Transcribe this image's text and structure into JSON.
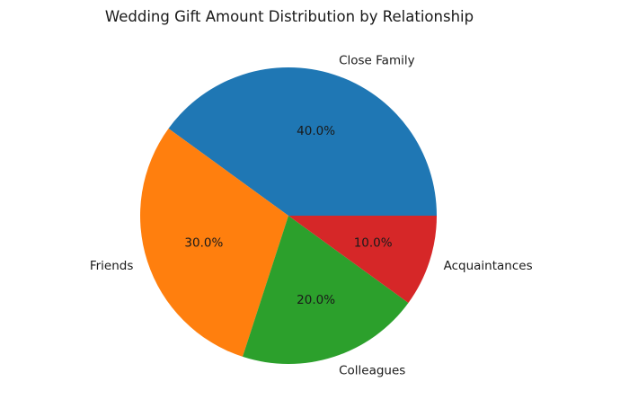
{
  "chart_data": {
    "type": "pie",
    "title": "Wedding Gift Amount Distribution by Relationship",
    "categories": [
      "Close Family",
      "Friends",
      "Colleagues",
      "Acquaintances"
    ],
    "values": [
      40,
      30,
      20,
      10
    ],
    "percent_labels": [
      "40.0%",
      "30.0%",
      "20.0%",
      "10.0%"
    ],
    "colors": [
      "#1f77b4",
      "#ff7f0e",
      "#2ca02c",
      "#d62728"
    ],
    "start_angle": 0,
    "counterclock": true,
    "legend": false,
    "grid": false,
    "xlabel": "",
    "ylabel": ""
  }
}
